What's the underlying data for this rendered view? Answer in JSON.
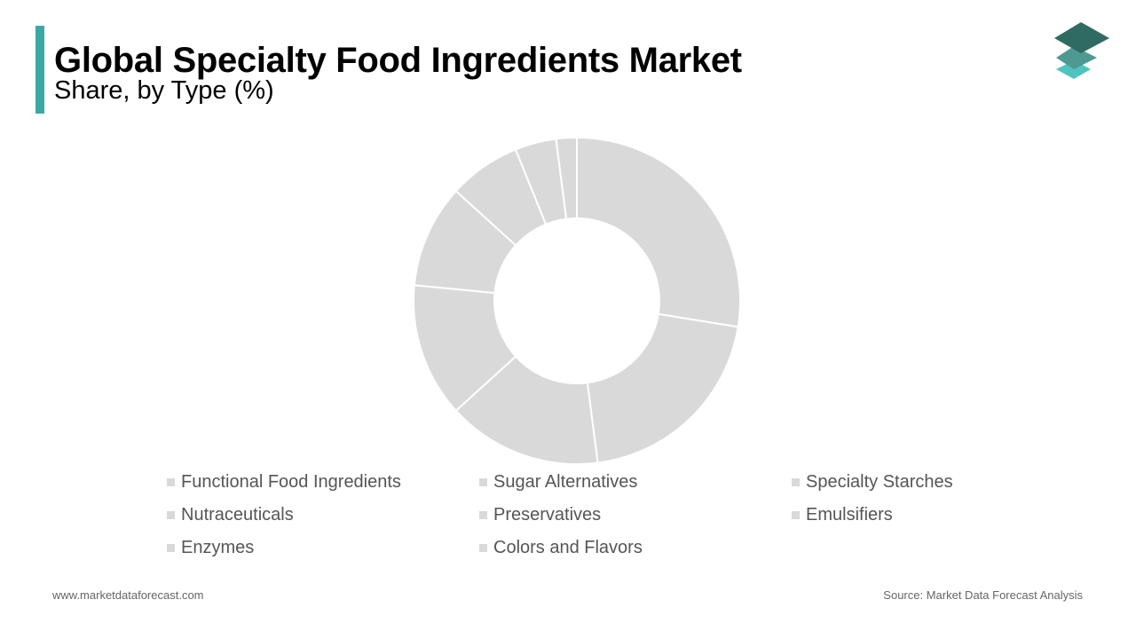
{
  "header": {
    "title": "Global Specialty Food Ingredients Market",
    "subtitle": "Share, by Type (%)"
  },
  "brand": {
    "accent_color": "#3aa9a6",
    "logo_icon": "layered-diamonds-icon",
    "logo_colors": [
      "#2f6b62",
      "#4e9a92",
      "#4fc3bf"
    ]
  },
  "chart_data": {
    "type": "pie",
    "donut": true,
    "slice_color": "#d9d9d9",
    "separator_color": "#ffffff",
    "start_angle_deg": 0,
    "direction": "clockwise",
    "categories": [
      "Functional Food Ingredients",
      "Sugar Alternatives",
      "Specialty Starches",
      "Nutraceuticals",
      "Preservatives",
      "Emulsifiers",
      "Enzymes",
      "Colors and Flavors"
    ],
    "values": [
      27,
      20,
      15,
      13,
      10,
      7,
      4,
      2
    ],
    "legend_position": "bottom"
  },
  "footer": {
    "website": "www.marketdataforecast.com",
    "source": "Source: Market Data Forecast Analysis"
  }
}
